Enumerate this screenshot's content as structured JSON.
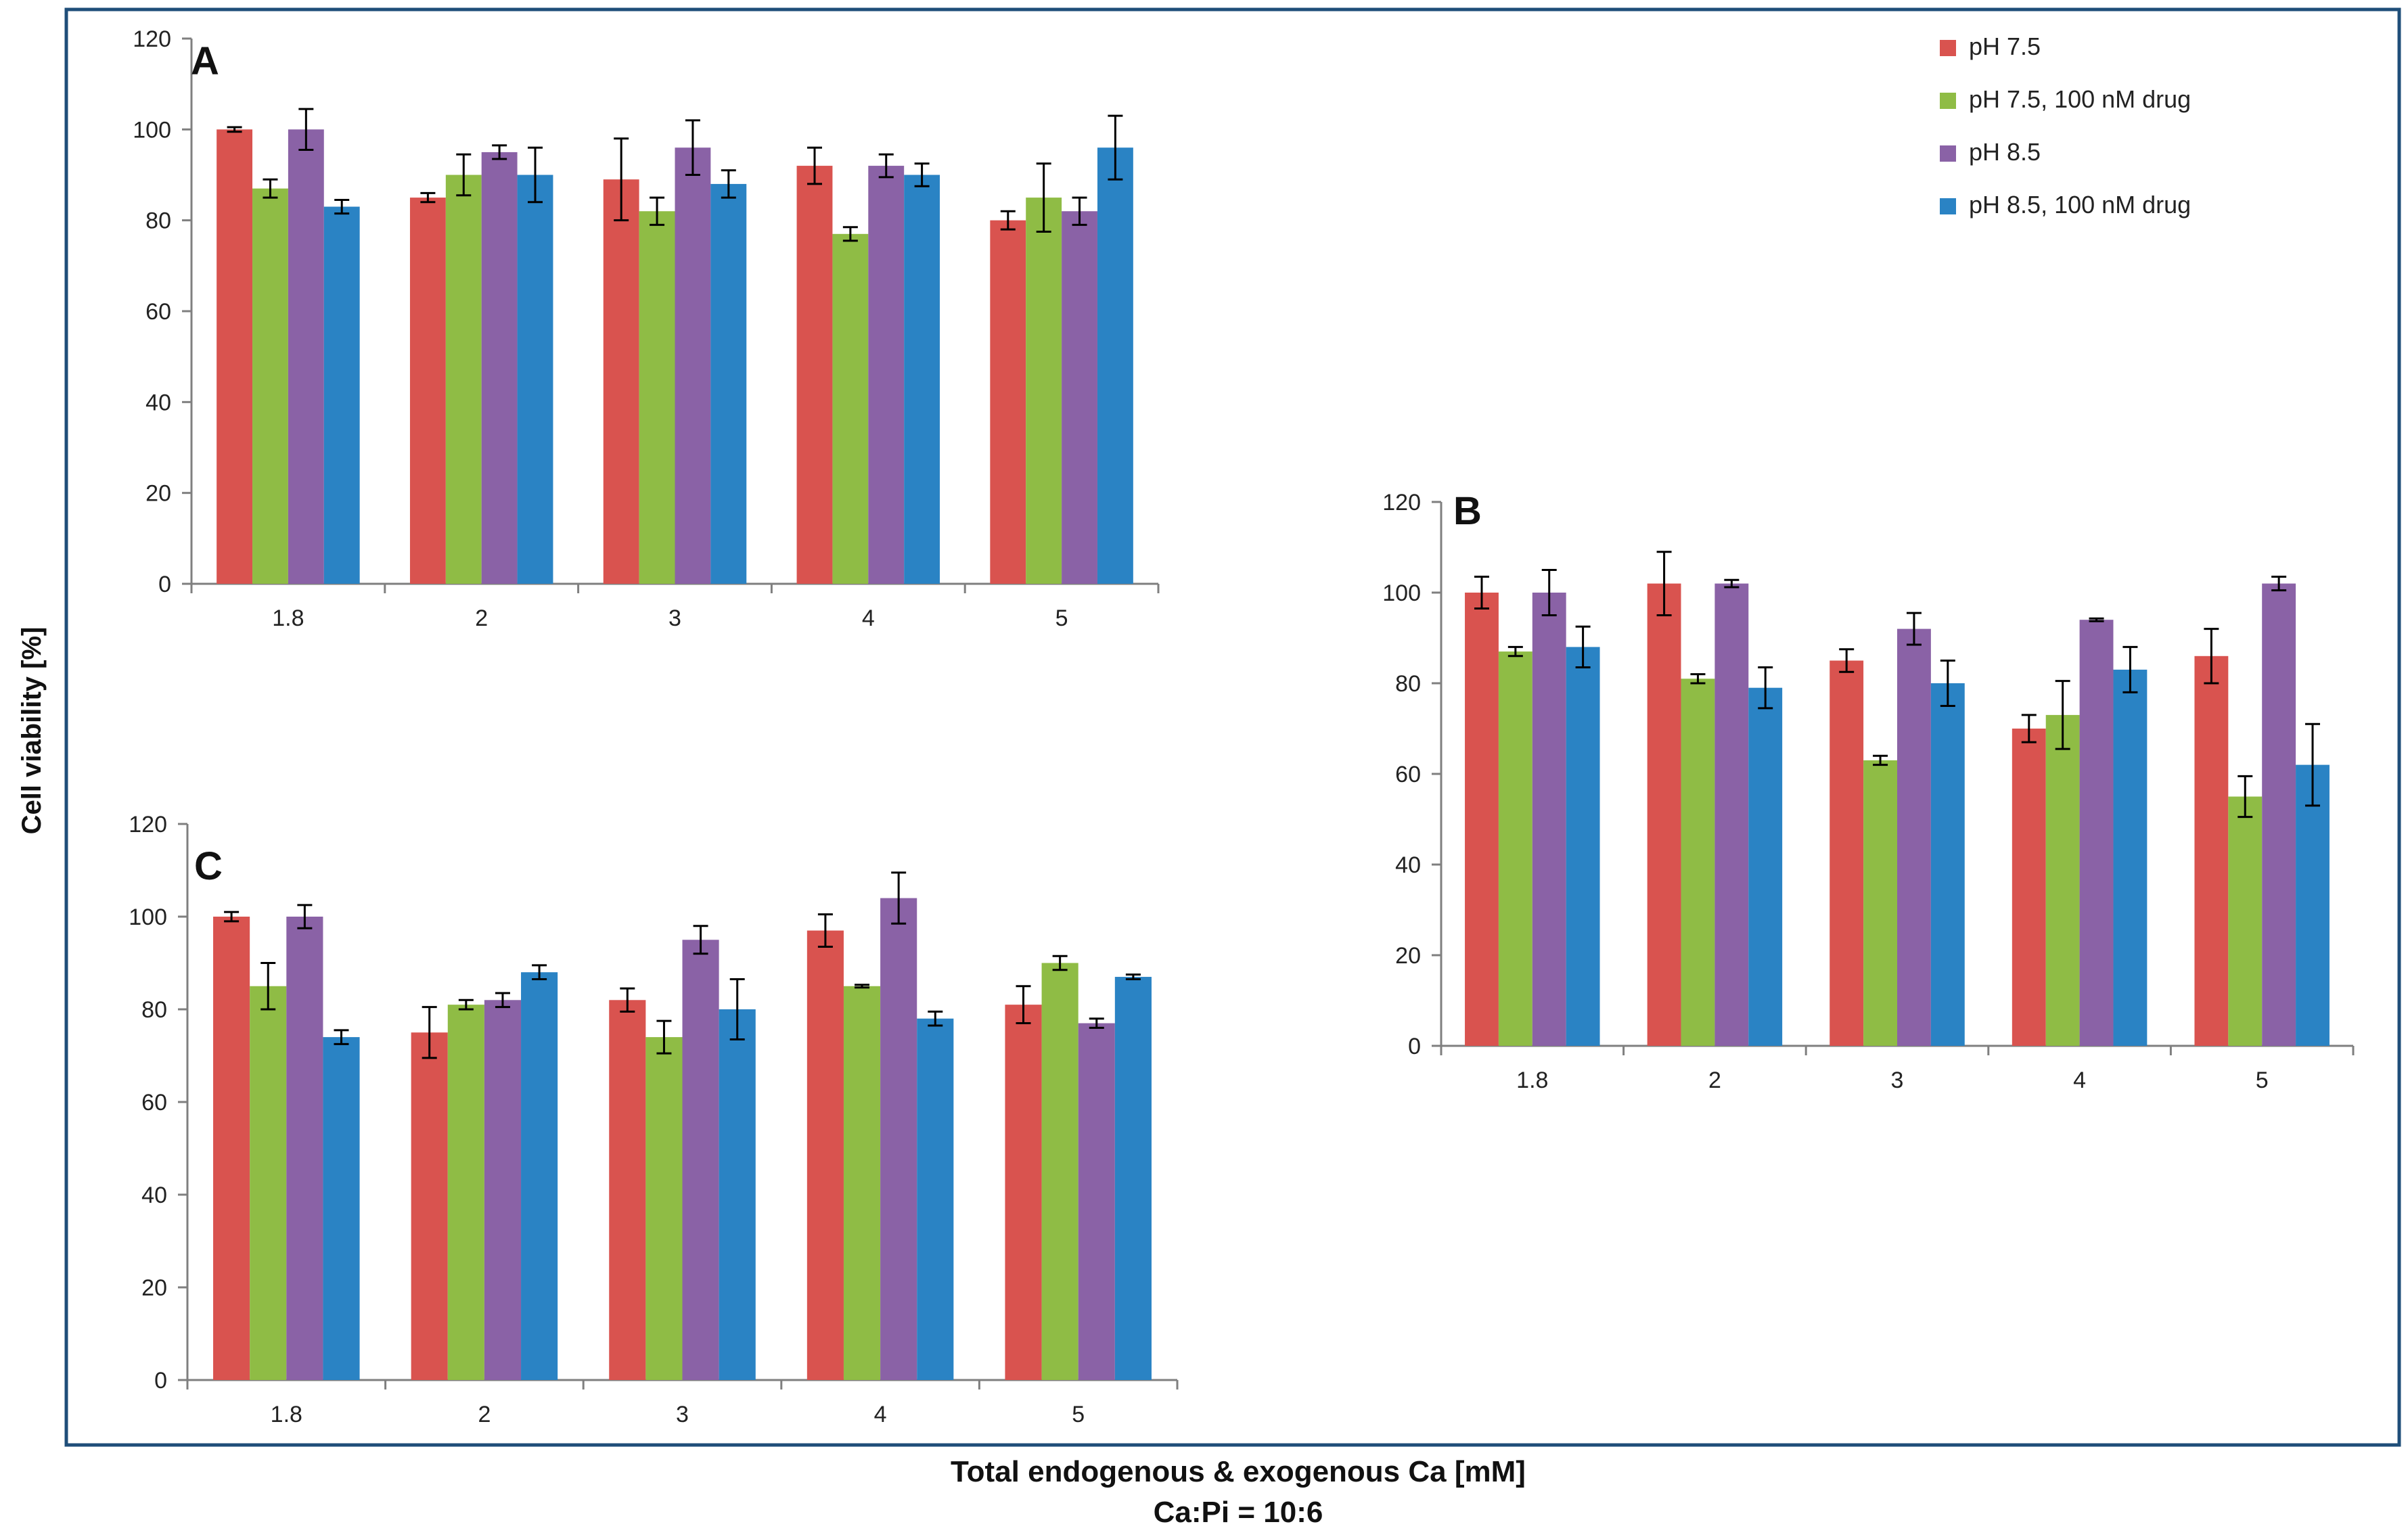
{
  "figure": {
    "ylabel": "Cell viability [%]",
    "xlabel_line1": "Total endogenous & exogenous Ca [mM]",
    "xlabel_line2": "Ca:Pi = 10:6"
  },
  "colors": {
    "pH 7.5": "#d9534f",
    "pH 7.5, 100 nM drug": "#8fbc45",
    "pH 8.5": "#8a62a6",
    "pH 8.5, 100 nM drug": "#2a83c4",
    "frame": "#1f4e79"
  },
  "legend": [
    "pH 7.5",
    "pH 7.5, 100 nM drug",
    "pH 8.5",
    "pH 8.5, 100 nM drug"
  ],
  "chart_data": [
    {
      "type": "bar",
      "panel": "A",
      "categories": [
        "1.8",
        "2",
        "3",
        "4",
        "5"
      ],
      "ylim": [
        0,
        120
      ],
      "yticks": [
        0,
        20,
        40,
        60,
        80,
        100,
        120
      ],
      "series": [
        {
          "name": "pH 7.5",
          "values": [
            100,
            85,
            89,
            92,
            80
          ],
          "errors": [
            0.5,
            1,
            9,
            4,
            2
          ]
        },
        {
          "name": "pH 7.5, 100 nM drug",
          "values": [
            87,
            90,
            82,
            77,
            85
          ],
          "errors": [
            2,
            4.5,
            3,
            1.5,
            7.5
          ]
        },
        {
          "name": "pH 8.5",
          "values": [
            100,
            95,
            96,
            92,
            82
          ],
          "errors": [
            4.5,
            1.5,
            6,
            2.5,
            3
          ]
        },
        {
          "name": "pH 8.5, 100 nM drug",
          "values": [
            83,
            90,
            88,
            90,
            96
          ],
          "errors": [
            1.5,
            6,
            3,
            2.5,
            7
          ]
        }
      ]
    },
    {
      "type": "bar",
      "panel": "B",
      "categories": [
        "1.8",
        "2",
        "3",
        "4",
        "5"
      ],
      "ylim": [
        0,
        120
      ],
      "yticks": [
        0,
        20,
        40,
        60,
        80,
        100,
        120
      ],
      "series": [
        {
          "name": "pH 7.5",
          "values": [
            100,
            102,
            85,
            70,
            86
          ],
          "errors": [
            3.5,
            7,
            2.5,
            3,
            6
          ]
        },
        {
          "name": "pH 7.5, 100 nM drug",
          "values": [
            87,
            81,
            63,
            73,
            55
          ],
          "errors": [
            1,
            1,
            1,
            7.5,
            4.5
          ]
        },
        {
          "name": "pH 8.5",
          "values": [
            100,
            102,
            92,
            94,
            102
          ],
          "errors": [
            5,
            0.8,
            3.5,
            0.3,
            1.5
          ]
        },
        {
          "name": "pH 8.5, 100 nM drug",
          "values": [
            88,
            79,
            80,
            83,
            62
          ],
          "errors": [
            4.5,
            4.5,
            5,
            5,
            9
          ]
        }
      ]
    },
    {
      "type": "bar",
      "panel": "C",
      "categories": [
        "1.8",
        "2",
        "3",
        "4",
        "5"
      ],
      "ylim": [
        0,
        120
      ],
      "yticks": [
        0,
        20,
        40,
        60,
        80,
        100,
        120
      ],
      "series": [
        {
          "name": "pH 7.5",
          "values": [
            100,
            75,
            82,
            97,
            81
          ],
          "errors": [
            1,
            5.5,
            2.5,
            3.5,
            4
          ]
        },
        {
          "name": "pH 7.5, 100 nM drug",
          "values": [
            85,
            81,
            74,
            85,
            90
          ],
          "errors": [
            5,
            1,
            3.5,
            0.3,
            1.5
          ]
        },
        {
          "name": "pH 8.5",
          "values": [
            100,
            82,
            95,
            104,
            77
          ],
          "errors": [
            2.5,
            1.5,
            3,
            5.5,
            1
          ]
        },
        {
          "name": "pH 8.5, 100 nM drug",
          "values": [
            74,
            88,
            80,
            78,
            87
          ],
          "errors": [
            1.5,
            1.5,
            6.5,
            1.5,
            0.5
          ]
        }
      ]
    }
  ]
}
